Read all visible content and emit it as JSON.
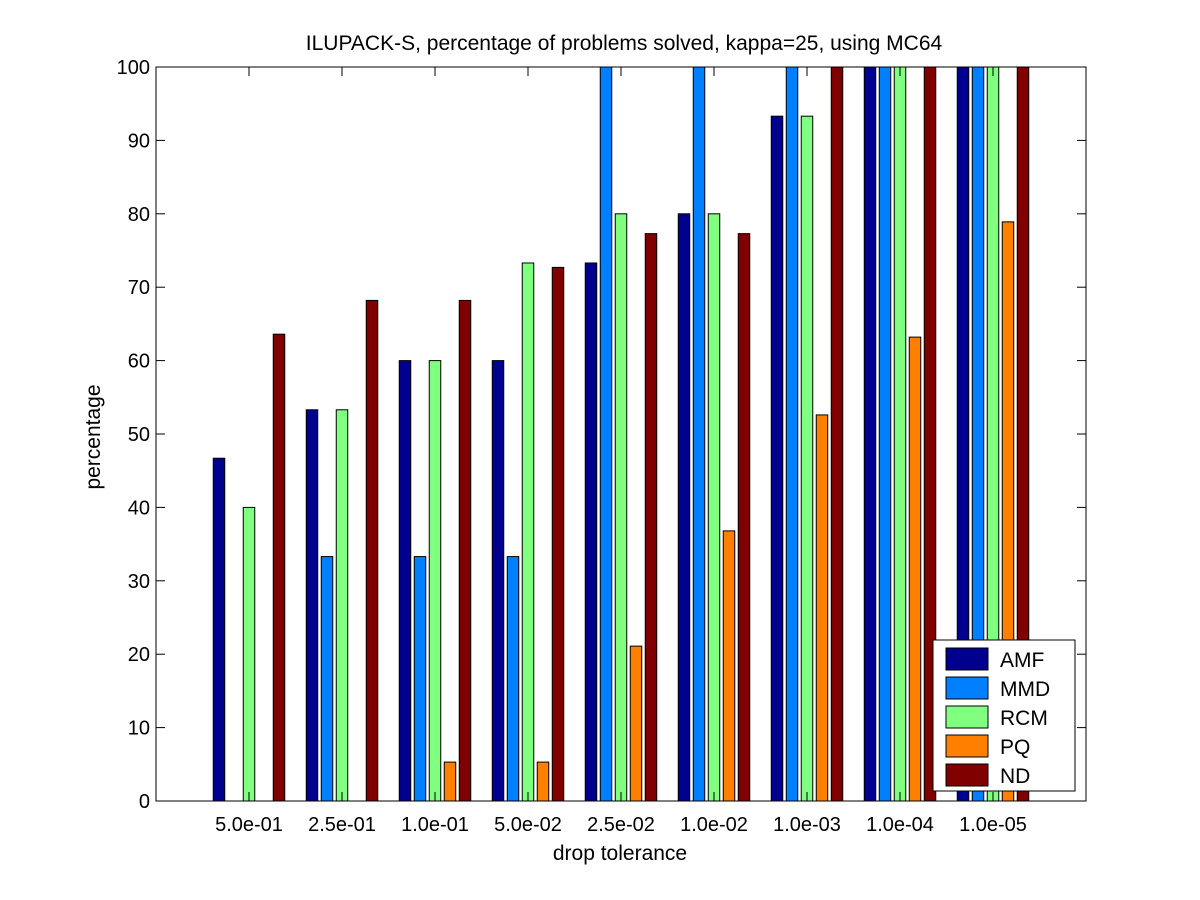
{
  "chart_data": {
    "type": "bar",
    "title": "ILUPACK-S, percentage of problems solved, kappa=25, using MC64",
    "xlabel": "drop tolerance",
    "ylabel": "percentage",
    "ylim": [
      0,
      100
    ],
    "yticks": [
      0,
      10,
      20,
      30,
      40,
      50,
      60,
      70,
      80,
      90,
      100
    ],
    "categories": [
      "5.0e-01",
      "2.5e-01",
      "1.0e-01",
      "5.0e-02",
      "2.5e-02",
      "1.0e-02",
      "1.0e-03",
      "1.0e-04",
      "1.0e-05"
    ],
    "series": [
      {
        "name": "AMF",
        "color": "#00008f",
        "values": [
          46.7,
          53.3,
          60.0,
          60.0,
          73.3,
          80.0,
          93.3,
          100,
          100
        ]
      },
      {
        "name": "MMD",
        "color": "#0080ff",
        "values": [
          0,
          33.3,
          33.3,
          33.3,
          100,
          100,
          100,
          100,
          100
        ]
      },
      {
        "name": "RCM",
        "color": "#80ff80",
        "values": [
          40.0,
          53.3,
          60.0,
          73.3,
          80.0,
          80.0,
          93.3,
          100,
          100
        ]
      },
      {
        "name": "PQ",
        "color": "#ff8000",
        "values": [
          0,
          0,
          5.3,
          5.3,
          21.1,
          36.8,
          52.6,
          63.2,
          78.9
        ]
      },
      {
        "name": "ND",
        "color": "#800000",
        "values": [
          63.6,
          68.2,
          68.2,
          72.7,
          77.3,
          77.3,
          100,
          100,
          100
        ]
      }
    ],
    "legend_position": "bottom-right",
    "grid": false
  }
}
